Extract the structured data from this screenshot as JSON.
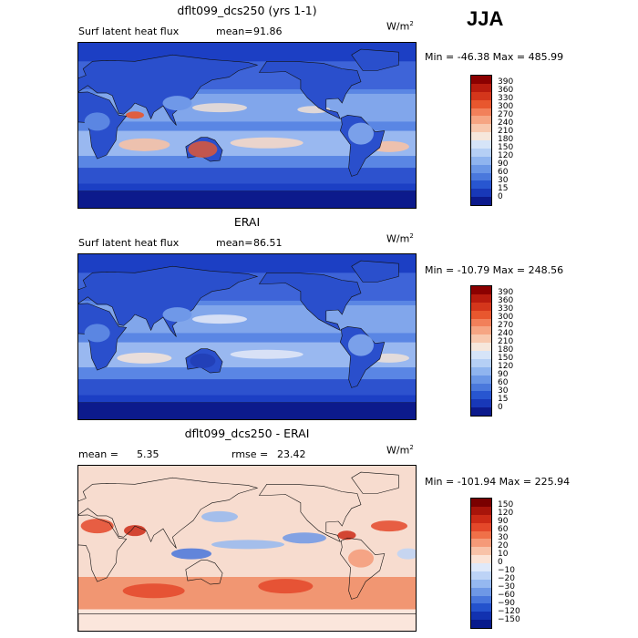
{
  "season": "JJA",
  "panels": [
    {
      "title": "dflt099_dcs250 (yrs 1-1)",
      "variable": "Surf latent heat flux",
      "mean_label": "mean=",
      "mean_value": "91.86",
      "units_base": "W/m",
      "units_exp": "2",
      "range_text": "Min = -46.38 Max = 485.99",
      "levels": [
        "390",
        "360",
        "330",
        "300",
        "270",
        "240",
        "210",
        "180",
        "150",
        "120",
        "90",
        "60",
        "30",
        "15",
        "0"
      ],
      "colors": [
        "#8b0000",
        "#b81b0e",
        "#d4361b",
        "#e8572e",
        "#f2805a",
        "#f6a583",
        "#f8c8ae",
        "#f6e7dc",
        "#d6e4f8",
        "#b5cff5",
        "#8fb4ef",
        "#6a96e6",
        "#4a78dc",
        "#2856d0",
        "#1838b8",
        "#0c1a8c"
      ]
    },
    {
      "title": "ERAI",
      "variable": "Surf latent heat flux",
      "mean_label": "mean=",
      "mean_value": "86.51",
      "units_base": "W/m",
      "units_exp": "2",
      "range_text": "Min = -10.79 Max = 248.56",
      "levels": [
        "390",
        "360",
        "330",
        "300",
        "270",
        "240",
        "210",
        "180",
        "150",
        "120",
        "90",
        "60",
        "30",
        "15",
        "0"
      ],
      "colors": [
        "#8b0000",
        "#b81b0e",
        "#d4361b",
        "#e8572e",
        "#f2805a",
        "#f6a583",
        "#f8c8ae",
        "#f6e7dc",
        "#d6e4f8",
        "#b5cff5",
        "#8fb4ef",
        "#6a96e6",
        "#4a78dc",
        "#2856d0",
        "#1838b8",
        "#0c1a8c"
      ]
    },
    {
      "title": "dflt099_dcs250 - ERAI",
      "mean_label": "mean =",
      "mean_value": "5.35",
      "rmse_label": "rmse =",
      "rmse_value": "23.42",
      "units_base": "W/m",
      "units_exp": "2",
      "range_text": "Min = -101.94 Max = 225.94",
      "levels": [
        "150",
        "120",
        "90",
        "60",
        "30",
        "20",
        "10",
        "0",
        "−10",
        "−20",
        "−30",
        "−60",
        "−90",
        "−120",
        "−150"
      ],
      "colors": [
        "#7a0000",
        "#a8140a",
        "#cc2a16",
        "#e4482a",
        "#f07048",
        "#f59a78",
        "#f8c2a8",
        "#fbe3d6",
        "#dfe9fa",
        "#bdd3f6",
        "#95b8f0",
        "#6e98e6",
        "#4876dc",
        "#2452cc",
        "#1232b0",
        "#081a8c"
      ]
    }
  ]
}
